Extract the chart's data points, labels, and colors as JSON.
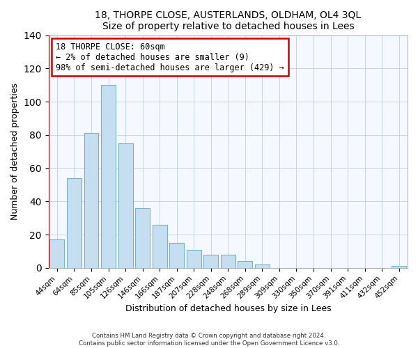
{
  "title1": "18, THORPE CLOSE, AUSTERLANDS, OLDHAM, OL4 3QL",
  "title2": "Size of property relative to detached houses in Lees",
  "xlabel": "Distribution of detached houses by size in Lees",
  "ylabel": "Number of detached properties",
  "bar_color": "#c5dff0",
  "bar_edge_color": "#7ab0cc",
  "categories": [
    "44sqm",
    "64sqm",
    "85sqm",
    "105sqm",
    "126sqm",
    "146sqm",
    "166sqm",
    "187sqm",
    "207sqm",
    "228sqm",
    "248sqm",
    "268sqm",
    "289sqm",
    "309sqm",
    "330sqm",
    "350sqm",
    "370sqm",
    "391sqm",
    "411sqm",
    "432sqm",
    "452sqm"
  ],
  "values": [
    17,
    54,
    81,
    110,
    75,
    36,
    26,
    15,
    11,
    8,
    8,
    4,
    2,
    0,
    0,
    0,
    0,
    0,
    0,
    0,
    1
  ],
  "ylim": [
    0,
    140
  ],
  "yticks": [
    0,
    20,
    40,
    60,
    80,
    100,
    120,
    140
  ],
  "marker_color": "#cc0000",
  "annotation_title": "18 THORPE CLOSE: 60sqm",
  "annotation_line1": "← 2% of detached houses are smaller (9)",
  "annotation_line2": "98% of semi-detached houses are larger (429) →",
  "footer1": "Contains HM Land Registry data © Crown copyright and database right 2024.",
  "footer2": "Contains public sector information licensed under the Open Government Licence v3.0."
}
